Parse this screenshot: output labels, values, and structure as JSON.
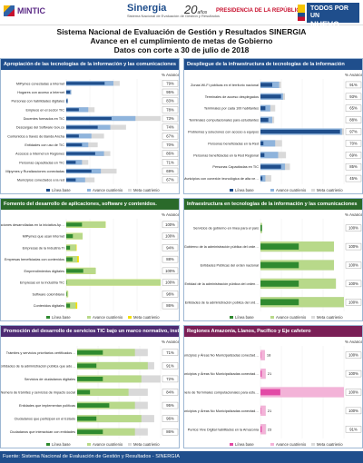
{
  "header": {
    "logo_mintic": "MINTIC",
    "logo_sinergia": "Sinergia",
    "logo_sinergia_sub": "Sistema Nacional de Evaluación de Gestión y Resultados",
    "logo_20": "20",
    "logo_20_sub": "años",
    "logo_presidencia": "PRESIDENCIA DE LA REPÚBLICA",
    "logo_pais_line1": "TODOS POR UN",
    "logo_pais_line2": "NUEVO PAÍS"
  },
  "title": {
    "line1": "Sistema Nacional de Evaluación de Gestión y Resultados SINERGIA",
    "line2": "Avance en el cumplimiento de metas de Gobierno",
    "line3": "Datos con corte a 30 de julio de 2018"
  },
  "footer": "Fuente: Sistema Nacional de Evaluación de Gestión y Resultados - SINERGIA",
  "colors": {
    "linea_base": "#1f4e8c",
    "avance": "#8fb4dc",
    "meta": "#d9d9d9",
    "green_base": "#2f8a2f",
    "green_avance": "#b8d98a",
    "yellow_meta": "#f3e000",
    "pink": "#e24aa6",
    "pink_light": "#f3b3d8"
  },
  "panels": [
    {
      "heading": "Apropiación de las tecnologías de la información y las comunicaciones",
      "legend": [
        "Línea base",
        "Avance cuatrienio",
        "Meta cuatrienio"
      ],
      "pct_header": "% Avance",
      "chart_data": {
        "type": "bar",
        "categories": [
          "MiPymes conectadas a Internet",
          "Hogares con acceso a Internet",
          "Personas con habilidades digitales",
          "Empleos en el sector TIC",
          "Docentes formados en TIC",
          "Descargas del Software Gov.co",
          "Contenidos a través de Banda Ancha",
          "Entidades con uso de TIC",
          "Accesos a Internet en Regiones",
          "Personas capacitadas en TIC",
          "Mipymes y Ruralizaciones conectadas",
          "Municipios conectados a la red"
        ],
        "series": [
          {
            "name": "Línea base",
            "values": [
              61,
              6.2,
              2.1,
              20,
              72,
              50,
              20,
              25,
              46,
              15,
              40,
              15
            ]
          },
          {
            "name": "Avance cuatrienio",
            "values": [
              75,
              7.8,
              2.5,
              35,
              110,
              70,
              40,
              35,
              60,
              25,
              55,
              30
            ]
          },
          {
            "name": "Meta cuatrienio",
            "values": [
              85,
              8.2,
              3,
              45,
              150,
              95,
              60,
              50,
              70,
              35,
              80,
              45
            ]
          }
        ],
        "pct": [
          "79%",
          "95%",
          "83%",
          "78%",
          "73%",
          "74%",
          "67%",
          "70%",
          "86%",
          "71%",
          "69%",
          "67%"
        ]
      }
    },
    {
      "heading": "Despliegue de la infraestructura de tecnologías de la información",
      "legend": [
        "Línea base",
        "Avance cuatrienio",
        "Meta cuatrienio"
      ],
      "pct_header": "% Avance",
      "chart_data": {
        "type": "bar",
        "categories": [
          "Zonas Wi-Fi públicas en el territorio nacional",
          "Terminales de acceso desplegados",
          "Terminales por cada 100 habitantes",
          "Terminales computacionales para estudiantes",
          "Problemas y soluciones con acceso a equipos",
          "Personas beneficiadas en la Red",
          "Personas beneficiadas en la Red Regional",
          "Personas Capacitadas en TIC",
          "Municipios con conexión tecnológica de alta velocidad"
        ],
        "series": [
          {
            "name": "Línea base",
            "values": [
              1.2,
              2.1,
              0.5,
              0.8,
              8.1,
              0.3,
              0.4,
              2.1,
              0.2
            ]
          },
          {
            "name": "Avance cuatrienio",
            "values": [
              1.9,
              2.3,
              1,
              1.2,
              8.3,
              1.5,
              1.8,
              2.5,
              0.5
            ]
          },
          {
            "name": "Meta cuatrienio",
            "values": [
              2.1,
              2.5,
              1.5,
              1.4,
              8.5,
              2.2,
              2.6,
              3.0,
              1.1
            ]
          }
        ],
        "pct": [
          "91%",
          "93%",
          "65%",
          "88%",
          "97%",
          "70%",
          "69%",
          "85%",
          "45%"
        ]
      }
    },
    {
      "heading": "Fomento del desarrollo de aplicaciones, software y contenidos.",
      "legend": [
        "Línea base",
        "Avance cuatrienio",
        "Meta cuatrienio"
      ],
      "pct_header": "% Avance",
      "chart_data": {
        "type": "bar",
        "categories": [
          "Aplicaciones desarrolladas en la iniciativa Apps.co",
          "MiPymes que usan Internet",
          "Empresas de la Industria TI",
          "Empresas beneficiadas con contenidos",
          "Emprendimientos digitales",
          "Empresas en la Industria TIC",
          "Software colombiano",
          "Contenidos digitales"
        ],
        "series": [
          {
            "name": "Línea base",
            "values": [
              50,
              21,
              12,
              20,
              54,
              0,
              1.9,
              12
            ]
          },
          {
            "name": "Avance cuatrienio",
            "values": [
              125,
              52,
              31,
              35,
              94,
              300,
              6,
              30
            ]
          },
          {
            "name": "Meta cuatrienio",
            "values": [
              125,
              52,
              33,
              40,
              92,
              300,
              6.1,
              35
            ]
          }
        ],
        "pct": [
          "100%",
          "100%",
          "94%",
          "88%",
          "100%",
          "100%",
          "98%",
          "86%"
        ]
      }
    },
    {
      "heading": "Infraestructura en tecnologías de la información y las comunicaciones",
      "legend": [
        "Línea base",
        "Avance cuatrienio",
        "Meta cuatrienio"
      ],
      "pct_header": "% Avance",
      "chart_data": {
        "type": "bar",
        "categories": [
          "Servicios de gobierno en línea para el país",
          "Gobierno de la administración pública del orden nacional",
          "Entidades Públicas del orden nacional",
          "Entidad de la administración pública del orden nacional y territorial",
          "Entidades de la administración pública del orden nacional"
        ],
        "series": [
          {
            "name": "Línea base",
            "values": [
              4,
              100,
              100,
              100,
              100
            ]
          },
          {
            "name": "Avance cuatrienio",
            "values": [
              4,
              192,
              192,
              197,
              218
            ]
          },
          {
            "name": "Meta cuatrienio",
            "values": [
              4.1,
              192,
              192,
              197,
              218
            ]
          }
        ],
        "pct": [
          "100%",
          "100%",
          "100%",
          "100%",
          "100%"
        ]
      }
    },
    {
      "heading": "Promoción del desarrollo de servicios TIC bajo un marco normativo, institucional y regulatorio convergente.",
      "legend": [
        "Línea base",
        "Avance cuatrienio",
        "Meta cuatrienio"
      ],
      "pct_header": "% Avance",
      "chart_data": {
        "type": "bar",
        "categories": [
          "Trámites y servicios prioritarios certificados en Gobierno en línea",
          "Entidades de la administración pública que adoptan el modelo",
          "Servicios de ciudadanos digitales",
          "Número de trámites y servicios de impacto social",
          "Entidades que implementan políticas",
          "Ciudadanos que participan en el Estado",
          "Ciudadanos que interactúan con entidades"
        ],
        "series": [
          {
            "name": "Línea base",
            "values": [
              20,
              15,
              20,
              10,
              25,
              15,
              20
            ]
          },
          {
            "name": "Avance cuatrienio",
            "values": [
              45,
              55,
              50,
              40,
              45,
              50,
              45
            ]
          },
          {
            "name": "Meta cuatrienio",
            "values": [
              55,
              60,
              65,
              55,
              55,
              60,
              55
            ]
          }
        ],
        "pct": [
          "71%",
          "91%",
          "72%",
          "84%",
          "95%",
          "96%",
          "86%"
        ]
      }
    },
    {
      "heading": "Regiones Amazonía, Llanos, Pacífico y Eje cafetero",
      "legend": [
        "Línea base",
        "Avance cuatrienio",
        "Meta cuatrienio"
      ],
      "pct_header": "% Avance",
      "chart_data": {
        "type": "bar",
        "categories": [
          "Municipios y Áreas No Municipalizadas conectadas a la red de alta velocidad en la Amazonía",
          "Municipios y Áreas No Municipalizadas conectadas a la red de alta velocidad en Pacífico",
          "Número de Terminales computacionales para estudiantes",
          "Municipios y Áreas No Municipalizadas conectadas a la red de alta velocidad en la Amazonía",
          "Puntos Vive Digital habilitados en la Amazonía"
        ],
        "series": [
          {
            "name": "Línea base",
            "values": [
              2,
              5,
              80,
              2,
              5
            ]
          },
          {
            "name": "Avance cuatrienio",
            "values": [
              18,
              21,
              336,
              21,
              21
            ]
          },
          {
            "name": "Meta cuatrienio",
            "values": [
              18,
              21,
              336.373,
              21,
              23
            ]
          }
        ],
        "labels": [
          "18",
          "21",
          "336.373",
          "21",
          "23"
        ],
        "pct": [
          "100%",
          "100%",
          "100%",
          "100%",
          "91%"
        ]
      }
    }
  ]
}
